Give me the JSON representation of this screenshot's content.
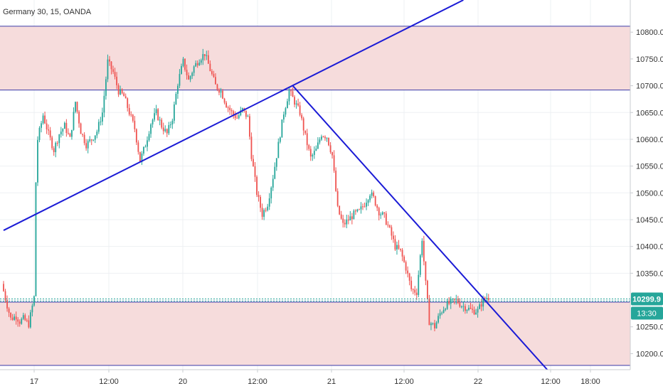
{
  "header": {
    "title": "Germany 30, 15, OANDA"
  },
  "price_tags": {
    "last_price": "10299.9",
    "countdown": "13:30",
    "color": "#26a69a"
  },
  "colors": {
    "up": "#26a69a",
    "down": "#ef5350",
    "trendline": "#1b1bd6",
    "zone_fill": "#f6dcdc",
    "zone_border": "#3a3aa8",
    "grid": "#eef0f3",
    "axis_text": "#333333"
  },
  "chart_data": {
    "type": "candlestick",
    "title": "Germany 30, 15, OANDA",
    "ylim": [
      10170,
      10860
    ],
    "yticks": [
      10200.0,
      10250.0,
      10300.0,
      10350.0,
      10400.0,
      10450.0,
      10500.0,
      10550.0,
      10600.0,
      10650.0,
      10700.0,
      10750.0,
      10800.0
    ],
    "x_tick_labels": [
      "17",
      "12:00",
      "20",
      "12:00",
      "21",
      "12:00",
      "22",
      "12:00",
      "18:00"
    ],
    "grid": true,
    "last_price": 10299.9,
    "last_price_line": 10302,
    "zones": [
      {
        "name": "upper resistance zone",
        "low": 10692,
        "high": 10811
      },
      {
        "name": "lower support zone",
        "low": 10178,
        "high": 10296
      }
    ],
    "trendlines": [
      {
        "from": {
          "bar": 0,
          "price": 10430
        },
        "to": {
          "bar": 256,
          "price": 10860
        }
      },
      {
        "from": {
          "bar": 161,
          "price": 10700
        },
        "to": {
          "bar": 304,
          "price": 10165
        }
      }
    ],
    "path_points": [
      [
        0,
        10330
      ],
      [
        3,
        10290
      ],
      [
        5,
        10265
      ],
      [
        8,
        10270
      ],
      [
        10,
        10260
      ],
      [
        12,
        10265
      ],
      [
        15,
        10255
      ],
      [
        18,
        10305
      ],
      [
        19,
        10520
      ],
      [
        20,
        10600
      ],
      [
        23,
        10645
      ],
      [
        26,
        10610
      ],
      [
        29,
        10580
      ],
      [
        32,
        10610
      ],
      [
        35,
        10625
      ],
      [
        38,
        10600
      ],
      [
        41,
        10670
      ],
      [
        44,
        10615
      ],
      [
        47,
        10590
      ],
      [
        50,
        10600
      ],
      [
        53,
        10615
      ],
      [
        56,
        10650
      ],
      [
        59,
        10745
      ],
      [
        62,
        10725
      ],
      [
        65,
        10690
      ],
      [
        68,
        10680
      ],
      [
        71,
        10650
      ],
      [
        74,
        10620
      ],
      [
        77,
        10560
      ],
      [
        80,
        10590
      ],
      [
        83,
        10630
      ],
      [
        86,
        10650
      ],
      [
        89,
        10625
      ],
      [
        92,
        10610
      ],
      [
        95,
        10640
      ],
      [
        98,
        10705
      ],
      [
        101,
        10745
      ],
      [
        104,
        10710
      ],
      [
        107,
        10735
      ],
      [
        110,
        10750
      ],
      [
        113,
        10760
      ],
      [
        116,
        10730
      ],
      [
        119,
        10700
      ],
      [
        122,
        10690
      ],
      [
        125,
        10665
      ],
      [
        128,
        10650
      ],
      [
        131,
        10640
      ],
      [
        134,
        10655
      ],
      [
        137,
        10640
      ],
      [
        139,
        10570
      ],
      [
        142,
        10500
      ],
      [
        145,
        10460
      ],
      [
        148,
        10480
      ],
      [
        151,
        10530
      ],
      [
        154,
        10590
      ],
      [
        157,
        10650
      ],
      [
        160,
        10690
      ],
      [
        163,
        10670
      ],
      [
        166,
        10650
      ],
      [
        169,
        10605
      ],
      [
        172,
        10565
      ],
      [
        175,
        10580
      ],
      [
        178,
        10610
      ],
      [
        181,
        10605
      ],
      [
        184,
        10570
      ],
      [
        187,
        10470
      ],
      [
        190,
        10440
      ],
      [
        193,
        10450
      ],
      [
        196,
        10460
      ],
      [
        199,
        10465
      ],
      [
        202,
        10480
      ],
      [
        205,
        10500
      ],
      [
        207,
        10490
      ],
      [
        210,
        10465
      ],
      [
        213,
        10455
      ],
      [
        216,
        10430
      ],
      [
        219,
        10400
      ],
      [
        222,
        10390
      ],
      [
        225,
        10360
      ],
      [
        228,
        10320
      ],
      [
        231,
        10315
      ],
      [
        234,
        10415
      ],
      [
        236,
        10330
      ],
      [
        238,
        10260
      ],
      [
        241,
        10250
      ],
      [
        244,
        10275
      ],
      [
        247,
        10290
      ],
      [
        250,
        10295
      ],
      [
        253,
        10300
      ],
      [
        256,
        10290
      ],
      [
        259,
        10285
      ],
      [
        262,
        10280
      ],
      [
        265,
        10280
      ],
      [
        268,
        10300
      ],
      [
        270,
        10305
      ]
    ]
  }
}
